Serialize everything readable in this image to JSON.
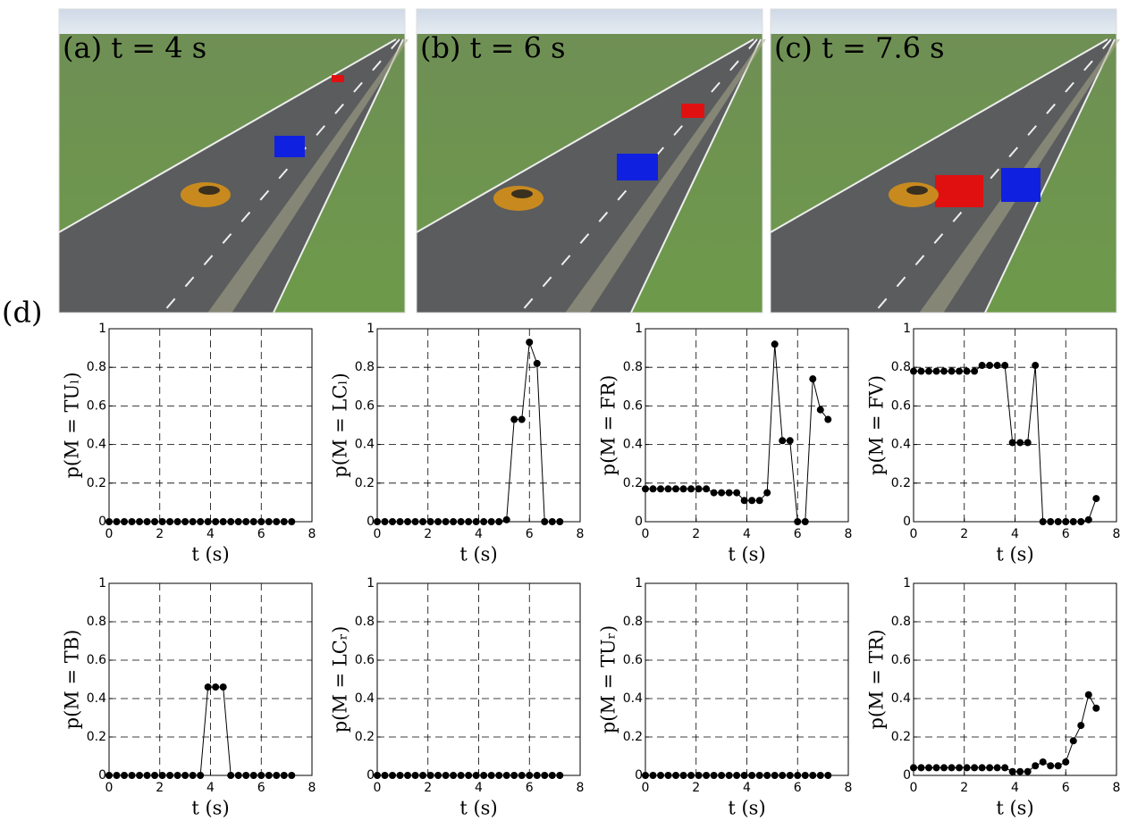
{
  "panels": [
    {
      "label": "(a) t = 4 s"
    },
    {
      "label": "(b) t = 6 s"
    },
    {
      "label": "(c) t = 7.6 s"
    }
  ],
  "panel_d_label": "(d)",
  "chart_data": [
    {
      "type": "line",
      "ylabel": "p(M = TUₗ)",
      "xlabel": "t (s)",
      "color": "#000000",
      "grid": true,
      "xlim": [
        0,
        8
      ],
      "xticks": [
        0,
        2,
        4,
        6,
        8
      ],
      "ylim": [
        0,
        1
      ],
      "yticks": [
        0,
        0.2,
        0.4,
        0.6,
        0.8,
        1
      ],
      "x": [
        0,
        0.3,
        0.6,
        0.9,
        1.2,
        1.5,
        1.8,
        2.1,
        2.4,
        2.7,
        3.0,
        3.3,
        3.6,
        3.9,
        4.2,
        4.5,
        4.8,
        5.1,
        5.4,
        5.7,
        6.0,
        6.3,
        6.6,
        6.9,
        7.2
      ],
      "values": [
        0,
        0,
        0,
        0,
        0,
        0,
        0,
        0,
        0,
        0,
        0,
        0,
        0,
        0,
        0,
        0,
        0,
        0,
        0,
        0,
        0,
        0,
        0,
        0,
        0
      ]
    },
    {
      "type": "line",
      "ylabel": "p(M = LCₗ)",
      "xlabel": "t (s)",
      "color": "#000000",
      "grid": true,
      "xlim": [
        0,
        8
      ],
      "xticks": [
        0,
        2,
        4,
        6,
        8
      ],
      "ylim": [
        0,
        1
      ],
      "yticks": [
        0,
        0.2,
        0.4,
        0.6,
        0.8,
        1
      ],
      "x": [
        0,
        0.3,
        0.6,
        0.9,
        1.2,
        1.5,
        1.8,
        2.1,
        2.4,
        2.7,
        3.0,
        3.3,
        3.6,
        3.9,
        4.2,
        4.5,
        4.8,
        5.1,
        5.4,
        5.7,
        6.0,
        6.3,
        6.6,
        6.9,
        7.2
      ],
      "values": [
        0,
        0,
        0,
        0,
        0,
        0,
        0,
        0,
        0,
        0,
        0,
        0,
        0,
        0,
        0,
        0,
        0,
        0.01,
        0.53,
        0.53,
        0.93,
        0.82,
        0,
        0,
        0
      ]
    },
    {
      "type": "line",
      "ylabel": "p(M = FR)",
      "xlabel": "t (s)",
      "color": "#000000",
      "grid": true,
      "xlim": [
        0,
        8
      ],
      "xticks": [
        0,
        2,
        4,
        6,
        8
      ],
      "ylim": [
        0,
        1
      ],
      "yticks": [
        0,
        0.2,
        0.4,
        0.6,
        0.8,
        1
      ],
      "x": [
        0,
        0.3,
        0.6,
        0.9,
        1.2,
        1.5,
        1.8,
        2.1,
        2.4,
        2.7,
        3.0,
        3.3,
        3.6,
        3.9,
        4.2,
        4.5,
        4.8,
        5.1,
        5.4,
        5.7,
        6.0,
        6.3,
        6.6,
        6.9,
        7.2
      ],
      "values": [
        0.17,
        0.17,
        0.17,
        0.17,
        0.17,
        0.17,
        0.17,
        0.17,
        0.17,
        0.15,
        0.15,
        0.15,
        0.15,
        0.11,
        0.11,
        0.11,
        0.15,
        0.92,
        0.42,
        0.42,
        0,
        0,
        0.74,
        0.58,
        0.53
      ]
    },
    {
      "type": "line",
      "ylabel": "p(M = FV)",
      "xlabel": "t (s)",
      "color": "#000000",
      "grid": true,
      "xlim": [
        0,
        8
      ],
      "xticks": [
        0,
        2,
        4,
        6,
        8
      ],
      "ylim": [
        0,
        1
      ],
      "yticks": [
        0,
        0.2,
        0.4,
        0.6,
        0.8,
        1
      ],
      "x": [
        0,
        0.3,
        0.6,
        0.9,
        1.2,
        1.5,
        1.8,
        2.1,
        2.4,
        2.7,
        3.0,
        3.3,
        3.6,
        3.9,
        4.2,
        4.5,
        4.8,
        5.1,
        5.4,
        5.7,
        6.0,
        6.3,
        6.6,
        6.9,
        7.2
      ],
      "values": [
        0.78,
        0.78,
        0.78,
        0.78,
        0.78,
        0.78,
        0.78,
        0.78,
        0.78,
        0.81,
        0.81,
        0.81,
        0.81,
        0.41,
        0.41,
        0.41,
        0.81,
        0,
        0,
        0,
        0,
        0,
        0,
        0.01,
        0.12
      ]
    },
    {
      "type": "line",
      "ylabel": "p(M = TB)",
      "xlabel": "t (s)",
      "color": "#000000",
      "grid": true,
      "xlim": [
        0,
        8
      ],
      "xticks": [
        0,
        2,
        4,
        6,
        8
      ],
      "ylim": [
        0,
        1
      ],
      "yticks": [
        0,
        0.2,
        0.4,
        0.6,
        0.8,
        1
      ],
      "x": [
        0,
        0.3,
        0.6,
        0.9,
        1.2,
        1.5,
        1.8,
        2.1,
        2.4,
        2.7,
        3.0,
        3.3,
        3.6,
        3.9,
        4.2,
        4.5,
        4.8,
        5.1,
        5.4,
        5.7,
        6.0,
        6.3,
        6.6,
        6.9,
        7.2
      ],
      "values": [
        0,
        0,
        0,
        0,
        0,
        0,
        0,
        0,
        0,
        0,
        0,
        0,
        0,
        0.46,
        0.46,
        0.46,
        0,
        0,
        0,
        0,
        0,
        0,
        0,
        0,
        0
      ]
    },
    {
      "type": "line",
      "ylabel": "p(M = LCᵣ)",
      "xlabel": "t (s)",
      "color": "#000000",
      "grid": true,
      "xlim": [
        0,
        8
      ],
      "xticks": [
        0,
        2,
        4,
        6,
        8
      ],
      "ylim": [
        0,
        1
      ],
      "yticks": [
        0,
        0.2,
        0.4,
        0.6,
        0.8,
        1
      ],
      "x": [
        0,
        0.3,
        0.6,
        0.9,
        1.2,
        1.5,
        1.8,
        2.1,
        2.4,
        2.7,
        3.0,
        3.3,
        3.6,
        3.9,
        4.2,
        4.5,
        4.8,
        5.1,
        5.4,
        5.7,
        6.0,
        6.3,
        6.6,
        6.9,
        7.2
      ],
      "values": [
        0,
        0,
        0,
        0,
        0,
        0,
        0,
        0,
        0,
        0,
        0,
        0,
        0,
        0,
        0,
        0,
        0,
        0,
        0,
        0,
        0,
        0,
        0,
        0,
        0
      ]
    },
    {
      "type": "line",
      "ylabel": "p(M = TUᵣ)",
      "xlabel": "t (s)",
      "color": "#000000",
      "grid": true,
      "xlim": [
        0,
        8
      ],
      "xticks": [
        0,
        2,
        4,
        6,
        8
      ],
      "ylim": [
        0,
        1
      ],
      "yticks": [
        0,
        0.2,
        0.4,
        0.6,
        0.8,
        1
      ],
      "x": [
        0,
        0.3,
        0.6,
        0.9,
        1.2,
        1.5,
        1.8,
        2.1,
        2.4,
        2.7,
        3.0,
        3.3,
        3.6,
        3.9,
        4.2,
        4.5,
        4.8,
        5.1,
        5.4,
        5.7,
        6.0,
        6.3,
        6.6,
        6.9,
        7.2
      ],
      "values": [
        0,
        0,
        0,
        0,
        0,
        0,
        0,
        0,
        0,
        0,
        0,
        0,
        0,
        0,
        0,
        0,
        0,
        0,
        0,
        0,
        0,
        0,
        0,
        0,
        0
      ]
    },
    {
      "type": "line",
      "ylabel": "p(M = TR)",
      "xlabel": "t (s)",
      "color": "#000000",
      "grid": true,
      "xlim": [
        0,
        8
      ],
      "xticks": [
        0,
        2,
        4,
        6,
        8
      ],
      "ylim": [
        0,
        1
      ],
      "yticks": [
        0,
        0.2,
        0.4,
        0.6,
        0.8,
        1
      ],
      "x": [
        0,
        0.3,
        0.6,
        0.9,
        1.2,
        1.5,
        1.8,
        2.1,
        2.4,
        2.7,
        3.0,
        3.3,
        3.6,
        3.9,
        4.2,
        4.5,
        4.8,
        5.1,
        5.4,
        5.7,
        6.0,
        6.3,
        6.6,
        6.9,
        7.2
      ],
      "values": [
        0.04,
        0.04,
        0.04,
        0.04,
        0.04,
        0.04,
        0.04,
        0.04,
        0.04,
        0.04,
        0.04,
        0.04,
        0.04,
        0.02,
        0.02,
        0.02,
        0.05,
        0.07,
        0.05,
        0.05,
        0.07,
        0.18,
        0.26,
        0.42,
        0.35
      ]
    }
  ]
}
